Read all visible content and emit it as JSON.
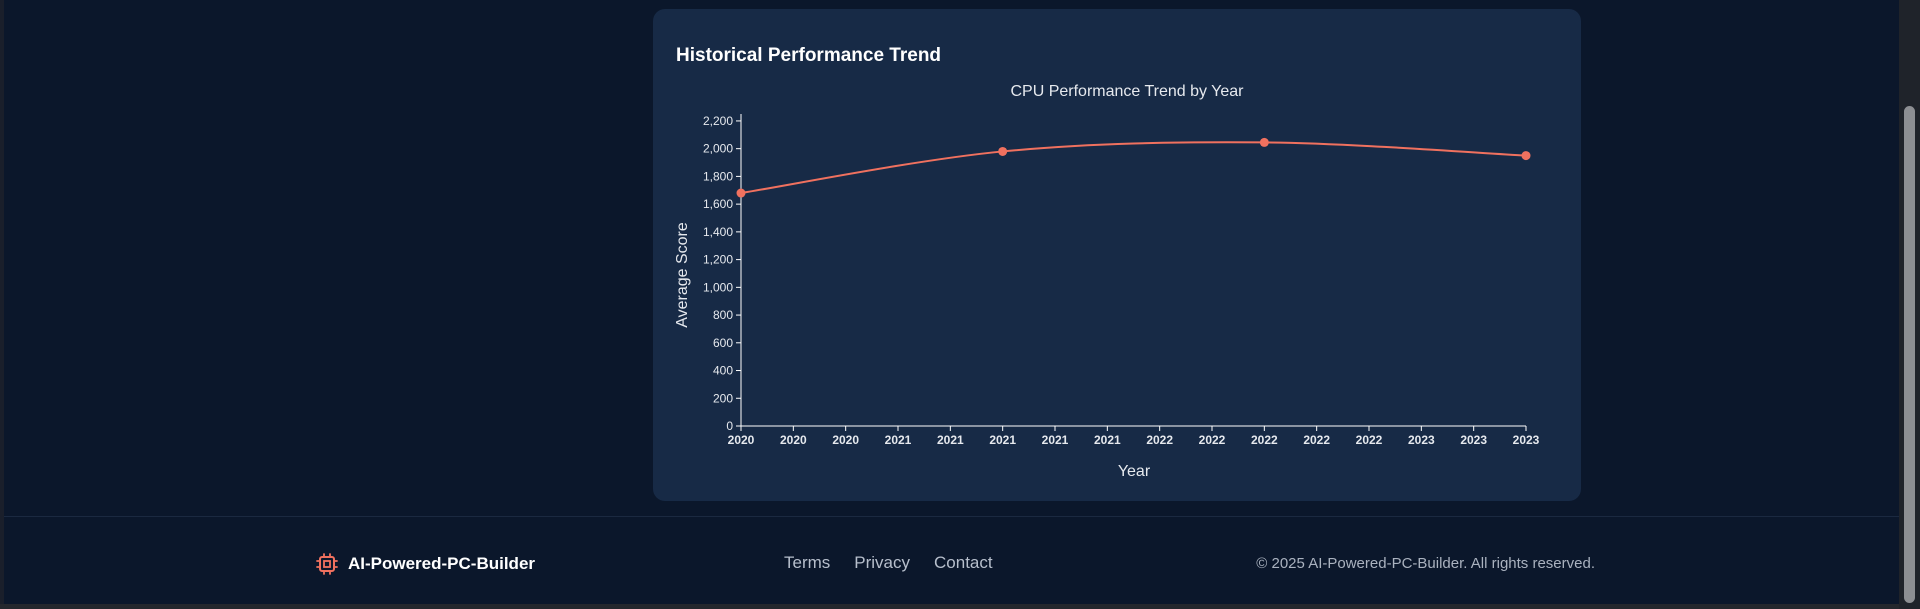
{
  "card": {
    "title": "Historical Performance Trend"
  },
  "chart_data": {
    "type": "line",
    "title": "CPU Performance Trend by Year",
    "xlabel": "Year",
    "ylabel": "Average Score",
    "x_tick_labels": [
      "2020",
      "2020",
      "2020",
      "2021",
      "2021",
      "2021",
      "2021",
      "2021",
      "2022",
      "2022",
      "2022",
      "2022",
      "2022",
      "2023",
      "2023",
      "2023"
    ],
    "y_ticks": [
      0,
      200,
      400,
      600,
      800,
      1000,
      1200,
      1400,
      1600,
      1800,
      2000,
      2200
    ],
    "y_tick_labels": [
      "0",
      "200",
      "400",
      "600",
      "800",
      "1,000",
      "1,200",
      "1,400",
      "1,600",
      "1,800",
      "2,000",
      "2,200"
    ],
    "ylim": [
      0,
      2250
    ],
    "xlim": [
      2020,
      2023
    ],
    "x": [
      2020,
      2021,
      2022,
      2023
    ],
    "values": [
      1680,
      1980,
      2045,
      1950
    ],
    "curve": "smooth",
    "grid": false,
    "colors": {
      "line": "#f0715f",
      "axis": "#ffffff",
      "text": "#e6e9ee"
    }
  },
  "footer": {
    "brand": "AI-Powered-PC-Builder",
    "brand_icon": "cpu-chip-icon",
    "links": [
      "Terms",
      "Privacy",
      "Contact"
    ],
    "copyright": "© 2025 AI-Powered-PC-Builder. All rights reserved."
  },
  "colors": {
    "page_bg": "#0b172b",
    "card_bg": "#172a46",
    "accent": "#f0715f"
  }
}
